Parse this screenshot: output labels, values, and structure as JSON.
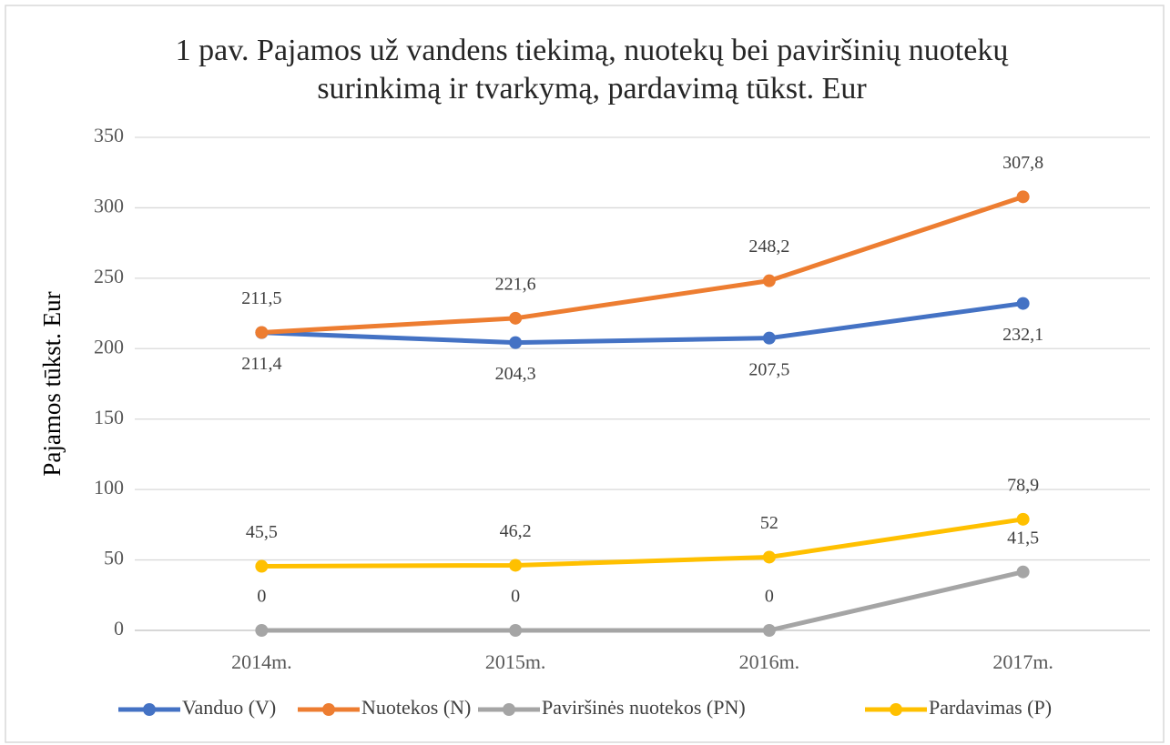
{
  "chart_data": {
    "type": "line",
    "title": [
      "1 pav. Pajamos už vandens tiekimą, nuotekų bei paviršinių nuotekų",
      "surinkimą ir tvarkymą, pardavimą tūkst. Eur"
    ],
    "y_label": "Pajamos tūkst. Eur",
    "categories": [
      "2014m.",
      "2015m.",
      "2016m.",
      "2017m."
    ],
    "series": [
      {
        "name": "Vanduo (V)",
        "color": "#4472c4",
        "values": [
          211.4,
          204.3,
          207.5,
          232.1
        ],
        "value_labels": [
          "211,4",
          "204,3",
          "207,5",
          "232,1"
        ]
      },
      {
        "name": "Nuotekos (N)",
        "color": "#ed7d31",
        "values": [
          211.5,
          221.6,
          248.2,
          307.8
        ],
        "value_labels": [
          "211,5",
          "221,6",
          "248,2",
          "307,8"
        ]
      },
      {
        "name": "Paviršinės nuotekos (PN)",
        "color": "#a5a5a5",
        "values": [
          0,
          0,
          0,
          41.5
        ],
        "value_labels": [
          "0",
          "0",
          "0",
          "41,5"
        ]
      },
      {
        "name": "Pardavimas (P)",
        "color": "#ffc000",
        "values": [
          45.5,
          46.2,
          52,
          78.9
        ],
        "value_labels": [
          "45,5",
          "46,2",
          "52",
          "78,9"
        ]
      }
    ],
    "ylim": [
      0,
      350
    ],
    "yticks": [
      0,
      50,
      100,
      150,
      200,
      250,
      300,
      350
    ],
    "grid": true,
    "legend": "bottom"
  }
}
